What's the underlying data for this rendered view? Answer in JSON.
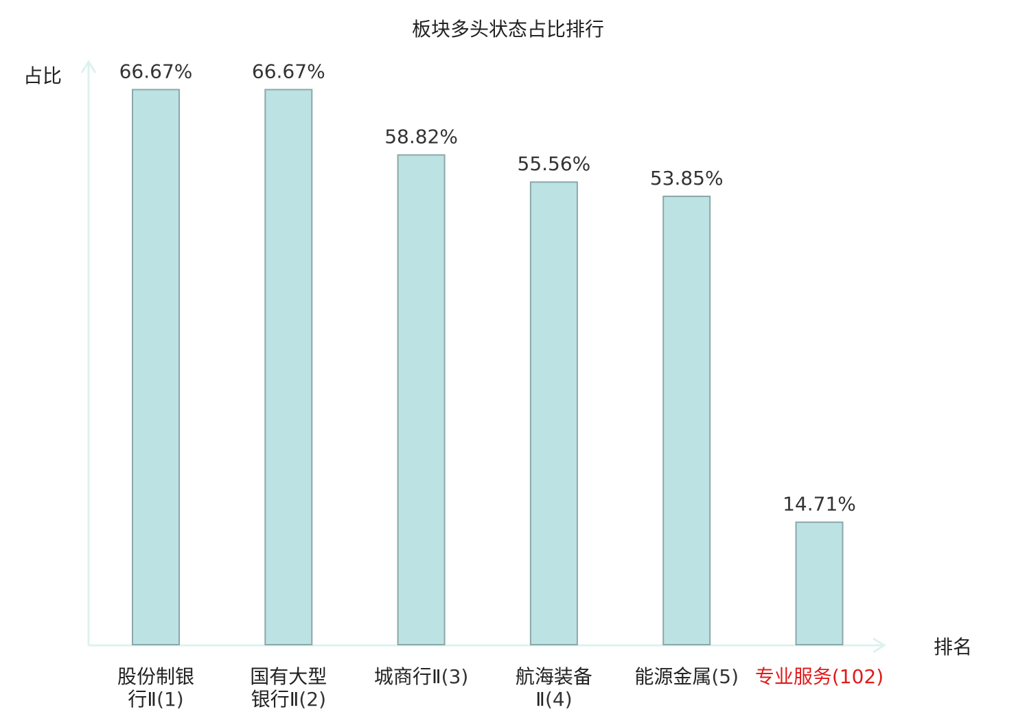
{
  "chart_data": {
    "type": "bar",
    "title": "板块多头状态占比排行",
    "xlabel": "排名",
    "ylabel": "占比",
    "ylim": [
      0,
      0.75
    ],
    "grid": false,
    "legend": "none",
    "bar_color": "#bde2e4",
    "bar_border_color": "#8aa8a8",
    "axis_color": "#def1ef",
    "categories": [
      {
        "lines": [
          [
            {
              "t": "股份制银",
              "c": "#222222"
            }
          ],
          [
            {
              "t": "行Ⅱ",
              "c": "#222222"
            },
            {
              "t": "(1)",
              "c": "#333333"
            }
          ]
        ]
      },
      {
        "lines": [
          [
            {
              "t": "国有大型",
              "c": "#222222"
            }
          ],
          [
            {
              "t": "银行Ⅱ",
              "c": "#222222"
            },
            {
              "t": "(2)",
              "c": "#333333"
            }
          ]
        ]
      },
      {
        "lines": [
          [
            {
              "t": "城商行Ⅱ",
              "c": "#222222"
            },
            {
              "t": "(3)",
              "c": "#333333"
            }
          ]
        ]
      },
      {
        "lines": [
          [
            {
              "t": "航海装备",
              "c": "#222222"
            }
          ],
          [
            {
              "t": "Ⅱ",
              "c": "#222222"
            },
            {
              "t": "(4)",
              "c": "#333333"
            }
          ]
        ]
      },
      {
        "lines": [
          [
            {
              "t": "能源金属",
              "c": "#222222"
            },
            {
              "t": "(5)",
              "c": "#333333"
            }
          ]
        ]
      },
      {
        "lines": [
          [
            {
              "t": "专业服务",
              "c": "#e01b1b"
            },
            {
              "t": "(102)",
              "c": "#e01b1b"
            }
          ]
        ]
      }
    ],
    "values": [
      0.6667,
      0.6667,
      0.5882,
      0.5556,
      0.5385,
      0.1471
    ],
    "value_labels": [
      "66.67%",
      "66.67%",
      "58.82%",
      "55.56%",
      "53.85%",
      "14.71%"
    ]
  }
}
